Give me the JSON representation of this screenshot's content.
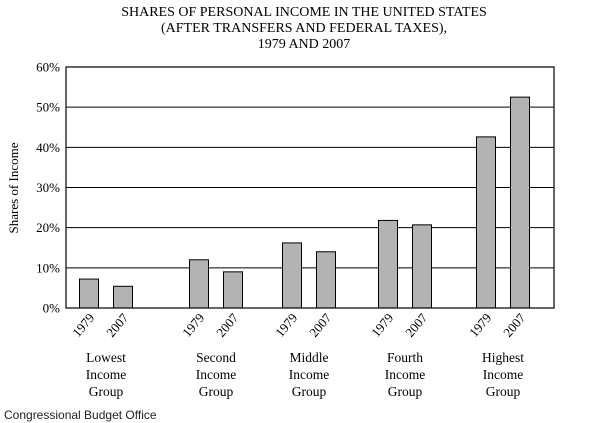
{
  "chart_data": {
    "type": "bar",
    "title": [
      "SHARES OF PERSONAL INCOME IN THE UNITED STATES",
      "(AFTER TRANSFERS AND FEDERAL TAXES),",
      "1979 AND 2007"
    ],
    "ylabel": "Shares of Income",
    "ylim": [
      0,
      60
    ],
    "yticks": [
      0,
      10,
      20,
      30,
      40,
      50,
      60
    ],
    "ytick_suffix": "%",
    "grid": true,
    "bar_color": "#b3b3b3",
    "groups": [
      {
        "label": [
          "Lowest",
          "Income",
          "Group"
        ],
        "bars": [
          {
            "year": "1979",
            "value": 7.2
          },
          {
            "year": "2007",
            "value": 5.4
          }
        ]
      },
      {
        "label": [
          "Second",
          "Income",
          "Group"
        ],
        "bars": [
          {
            "year": "1979",
            "value": 12.0
          },
          {
            "year": "2007",
            "value": 9.0
          }
        ]
      },
      {
        "label": [
          "Middle",
          "Income",
          "Group"
        ],
        "bars": [
          {
            "year": "1979",
            "value": 16.2
          },
          {
            "year": "2007",
            "value": 14.0
          }
        ]
      },
      {
        "label": [
          "Fourth",
          "Income",
          "Group"
        ],
        "bars": [
          {
            "year": "1979",
            "value": 21.8
          },
          {
            "year": "2007",
            "value": 20.7
          }
        ]
      },
      {
        "label": [
          "Highest",
          "Income",
          "Group"
        ],
        "bars": [
          {
            "year": "1979",
            "value": 42.6
          },
          {
            "year": "2007",
            "value": 52.5
          }
        ]
      }
    ]
  },
  "source": "Congressional Budget Office"
}
